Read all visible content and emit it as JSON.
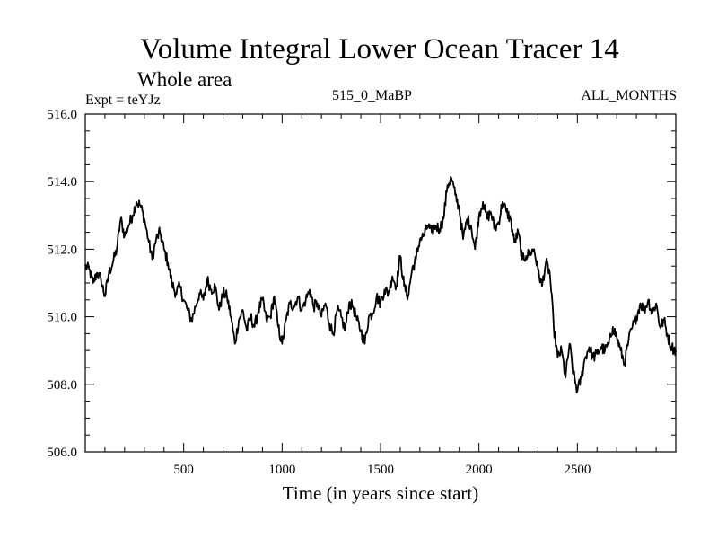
{
  "chart_data": {
    "type": "line",
    "title": "Volume Integral Lower Ocean Tracer 14",
    "subtitle": "Whole area",
    "expt_label": "Expt = teYJz",
    "center_label": "515_0_MaBP",
    "right_label": "ALL_MONTHS",
    "xlabel": "Time (in years since start)",
    "ylabel": "",
    "xlim": [
      0,
      3000
    ],
    "ylim": [
      506.0,
      516.0
    ],
    "x_ticks": [
      500,
      1000,
      1500,
      2000,
      2500
    ],
    "x_tick_labels": [
      "500",
      "1000",
      "1500",
      "2000",
      "2500"
    ],
    "y_ticks": [
      506.0,
      508.0,
      510.0,
      512.0,
      514.0,
      516.0
    ],
    "y_tick_labels": [
      "506.0",
      "508.0",
      "510.0",
      "512.0",
      "514.0",
      "516.0"
    ],
    "series": [
      {
        "name": "Tracer 14",
        "color": "#000000",
        "x": [
          0,
          20,
          40,
          60,
          80,
          100,
          120,
          140,
          160,
          180,
          200,
          220,
          240,
          260,
          280,
          300,
          320,
          340,
          360,
          380,
          400,
          420,
          440,
          460,
          480,
          500,
          520,
          540,
          560,
          580,
          600,
          620,
          640,
          660,
          680,
          700,
          720,
          740,
          760,
          780,
          800,
          820,
          840,
          860,
          880,
          900,
          920,
          940,
          960,
          980,
          1000,
          1020,
          1040,
          1060,
          1080,
          1100,
          1120,
          1140,
          1160,
          1180,
          1200,
          1220,
          1240,
          1260,
          1280,
          1300,
          1320,
          1340,
          1360,
          1380,
          1400,
          1420,
          1440,
          1460,
          1480,
          1500,
          1520,
          1540,
          1560,
          1580,
          1600,
          1620,
          1640,
          1660,
          1680,
          1700,
          1720,
          1740,
          1760,
          1780,
          1800,
          1820,
          1840,
          1860,
          1880,
          1900,
          1920,
          1940,
          1960,
          1980,
          2000,
          2020,
          2040,
          2060,
          2080,
          2100,
          2120,
          2140,
          2160,
          2180,
          2200,
          2220,
          2240,
          2260,
          2280,
          2300,
          2320,
          2340,
          2360,
          2380,
          2400,
          2420,
          2440,
          2460,
          2480,
          2500,
          2520,
          2540,
          2560,
          2580,
          2600,
          2620,
          2640,
          2660,
          2680,
          2700,
          2720,
          2740,
          2760,
          2780,
          2800,
          2820,
          2840,
          2860,
          2880,
          2900,
          2920,
          2940,
          2960,
          2980,
          3000
        ],
        "values": [
          511.5,
          511.4,
          511.0,
          511.3,
          511.1,
          510.6,
          511.3,
          511.6,
          512.0,
          512.9,
          512.4,
          512.7,
          513.0,
          513.4,
          513.3,
          512.9,
          512.3,
          511.7,
          512.3,
          512.5,
          512.0,
          511.6,
          511.0,
          510.7,
          510.9,
          510.5,
          510.2,
          509.9,
          510.3,
          510.7,
          510.5,
          511.1,
          510.8,
          510.9,
          510.2,
          510.7,
          510.6,
          510.0,
          509.2,
          509.9,
          510.2,
          509.6,
          510.0,
          509.7,
          510.2,
          510.5,
          509.9,
          510.0,
          510.6,
          509.7,
          509.2,
          509.9,
          510.4,
          510.3,
          510.6,
          510.2,
          510.5,
          510.8,
          510.3,
          510.4,
          510.0,
          510.4,
          509.8,
          509.5,
          510.2,
          510.0,
          509.6,
          510.4,
          510.3,
          509.9,
          509.6,
          509.2,
          510.0,
          510.1,
          510.6,
          510.4,
          510.8,
          510.7,
          511.2,
          510.9,
          511.8,
          510.9,
          510.6,
          511.4,
          511.7,
          512.3,
          512.4,
          512.7,
          512.5,
          512.7,
          512.6,
          512.9,
          513.9,
          514.1,
          513.6,
          513.2,
          512.3,
          512.9,
          512.7,
          512.0,
          513.0,
          513.4,
          512.9,
          513.1,
          512.6,
          512.8,
          513.4,
          513.1,
          512.9,
          512.2,
          512.5,
          511.7,
          511.8,
          511.9,
          512.0,
          511.4,
          510.9,
          511.6,
          511.3,
          509.7,
          508.8,
          509.0,
          508.2,
          509.2,
          508.3,
          507.8,
          508.2,
          508.8,
          509.1,
          508.8,
          508.9,
          509.1,
          509.0,
          509.2,
          509.7,
          509.4,
          509.0,
          508.6,
          509.3,
          509.7,
          510.0,
          510.4,
          510.2,
          510.5,
          510.1,
          510.4,
          509.7,
          509.9,
          509.4,
          509.1,
          509.0
        ]
      }
    ]
  }
}
